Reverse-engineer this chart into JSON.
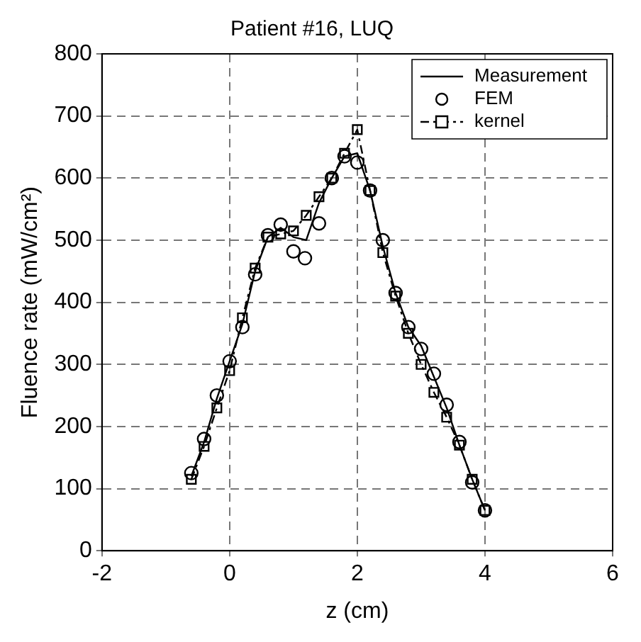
{
  "chart_data": {
    "type": "line",
    "title": "Patient #16, LUQ",
    "xlabel": "z (cm)",
    "ylabel": "Fluence rate (mW/cm²)",
    "xlim": [
      -2,
      6
    ],
    "xticks": [
      -2,
      0,
      2,
      4,
      6
    ],
    "ylim": [
      0,
      800
    ],
    "yticks": [
      0,
      100,
      200,
      300,
      400,
      500,
      600,
      700,
      800
    ],
    "grid": true,
    "legend": "top right",
    "series": [
      {
        "name": "Measurement",
        "color": "#000000",
        "marker": "none",
        "line_style": "solid",
        "x": [
          -0.6,
          -0.4,
          -0.2,
          0,
          0.2,
          0.4,
          0.6,
          0.8,
          1.0,
          1.2,
          1.4,
          1.6,
          1.8,
          2.0,
          2.2,
          2.4,
          2.6,
          2.8,
          3.0,
          3.2,
          3.4,
          3.6,
          3.8,
          4.0
        ],
        "values": [
          120,
          175,
          245,
          305,
          365,
          450,
          505,
          520,
          505,
          500,
          560,
          600,
          635,
          640,
          580,
          490,
          415,
          360,
          330,
          280,
          230,
          170,
          115,
          65
        ]
      },
      {
        "name": "FEM",
        "type": "scatter",
        "color": "#000000",
        "marker": "circle",
        "x": [
          -0.6,
          -0.4,
          -0.2,
          0,
          0.2,
          0.4,
          0.6,
          0.8,
          1.0,
          1.18,
          1.4,
          1.6,
          1.8,
          2.0,
          2.2,
          2.4,
          2.6,
          2.8,
          3.0,
          3.2,
          3.4,
          3.6,
          3.8,
          4.0
        ],
        "values": [
          125,
          180,
          250,
          305,
          360,
          445,
          508,
          525,
          482,
          471,
          527,
          600,
          635,
          625,
          580,
          500,
          415,
          360,
          325,
          285,
          235,
          175,
          110,
          65
        ]
      },
      {
        "name": "kernel",
        "color": "#000000",
        "marker": "square",
        "line_style": "dashed",
        "x": [
          -0.6,
          -0.4,
          -0.2,
          0,
          0.2,
          0.4,
          0.6,
          0.8,
          1.0,
          1.2,
          1.4,
          1.6,
          1.8,
          2.0,
          2.2,
          2.4,
          2.6,
          2.8,
          3.0,
          3.2,
          3.4,
          3.6,
          3.8,
          4.0
        ],
        "values": [
          115,
          168,
          230,
          290,
          375,
          455,
          505,
          510,
          515,
          540,
          570,
          600,
          640,
          678,
          580,
          480,
          410,
          350,
          300,
          255,
          215,
          170,
          115,
          65
        ]
      }
    ]
  }
}
